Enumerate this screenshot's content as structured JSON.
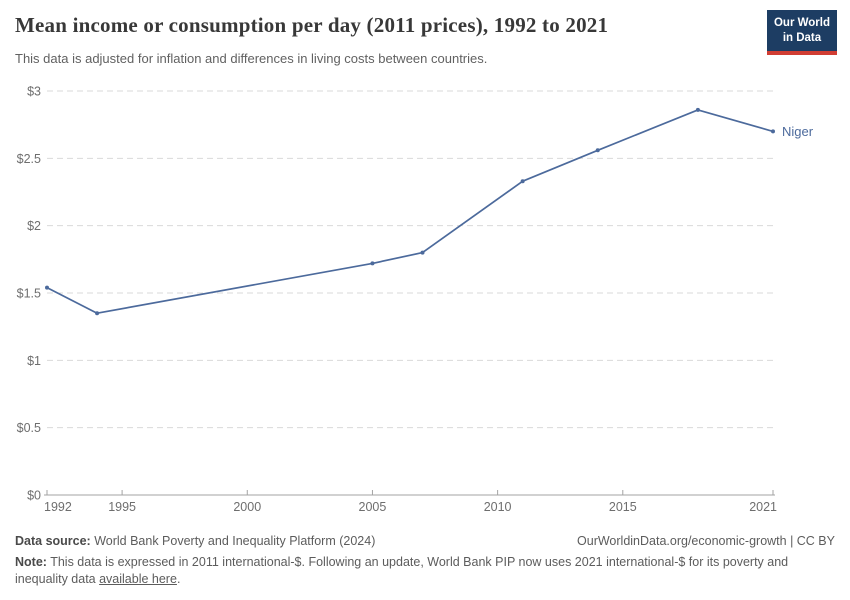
{
  "header": {
    "title": "Mean income or consumption per day (2011 prices), 1992 to 2021",
    "subtitle": "This data is adjusted for inflation and differences in living costs between countries.",
    "logo": {
      "line1": "Our World",
      "line2": "in Data"
    }
  },
  "colors": {
    "line": "#4c6a9c",
    "grid": "#d9d9d9",
    "axis": "#a3a3a3",
    "tick_label": "#6e6e6e",
    "logo_bg": "#1d3d63",
    "logo_accent": "#d13d33"
  },
  "chart_data": {
    "type": "line",
    "title": "Mean income or consumption per day (2011 prices), 1992 to 2021",
    "x": [
      1992,
      1994,
      2005,
      2007,
      2011,
      2014,
      2018,
      2021
    ],
    "series": [
      {
        "name": "Niger",
        "color": "#4c6a9c",
        "values": [
          1.54,
          1.35,
          1.72,
          1.8,
          2.33,
          2.56,
          2.86,
          2.7
        ]
      }
    ],
    "x_ticks": [
      1992,
      1995,
      2000,
      2005,
      2010,
      2015,
      2021
    ],
    "y_ticks": [
      0,
      0.5,
      1,
      1.5,
      2,
      2.5,
      3
    ],
    "y_prefix": "$",
    "xlim": [
      1992,
      2021
    ],
    "ylim": [
      0,
      3
    ],
    "grid": "horizontal-dashed",
    "legend": "end-of-line-label"
  },
  "footer": {
    "source_label": "Data source:",
    "source_text": " World Bank Poverty and Inequality Platform (2024)",
    "attribution": "OurWorldinData.org/economic-growth | CC BY",
    "note_label": "Note:",
    "note_text_1": " This data is expressed in 2011 international-$. Following an update, World Bank PIP now uses 2021 international-$ for its poverty and inequality data ",
    "note_link": "available here",
    "note_text_2": "."
  }
}
